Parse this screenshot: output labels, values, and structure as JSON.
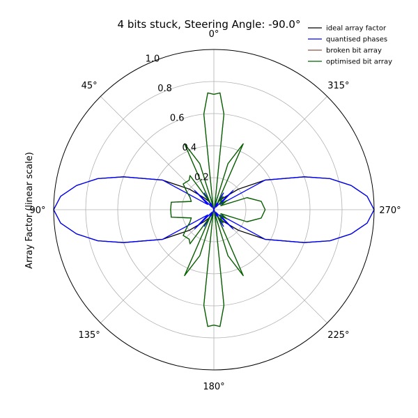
{
  "chart_data": {
    "type": "polar-line",
    "title": "4 bits stuck, Steering Angle: -90.0°",
    "ylabel": "Array Factor (linear scale)",
    "rlim": [
      0,
      1.0
    ],
    "r_ticks": [
      "0.2",
      "0.4",
      "0.6",
      "0.8",
      "1.0"
    ],
    "r_tick_values": [
      0.2,
      0.4,
      0.6,
      0.8,
      1.0
    ],
    "theta_ticks": [
      "0°",
      "45°",
      "90°",
      "135°",
      "180°",
      "225°",
      "270°",
      "315°"
    ],
    "theta_tick_values": [
      0,
      45,
      90,
      135,
      180,
      225,
      270,
      315
    ],
    "theta_zero": "top",
    "theta_direction": "counterclockwise",
    "grid": true,
    "legend_position": "top-right",
    "series": [
      {
        "name": "ideal array factor",
        "color": "#000000",
        "points": [
          [
            0,
            0
          ],
          [
            20,
            0.03
          ],
          [
            30,
            0.06
          ],
          [
            40,
            0.1
          ],
          [
            50,
            0.2
          ],
          [
            60,
            0.37
          ],
          [
            70,
            0.6
          ],
          [
            75,
            0.75
          ],
          [
            80,
            0.87
          ],
          [
            85,
            0.96
          ],
          [
            90,
            1.0
          ],
          [
            95,
            0.96
          ],
          [
            100,
            0.87
          ],
          [
            105,
            0.75
          ],
          [
            110,
            0.6
          ],
          [
            120,
            0.37
          ],
          [
            130,
            0.2
          ],
          [
            140,
            0.1
          ],
          [
            150,
            0.06
          ],
          [
            160,
            0.03
          ],
          [
            180,
            0
          ],
          [
            200,
            0.03
          ],
          [
            210,
            0.06
          ],
          [
            220,
            0.1
          ],
          [
            230,
            0.2
          ],
          [
            240,
            0.37
          ],
          [
            250,
            0.6
          ],
          [
            255,
            0.75
          ],
          [
            260,
            0.87
          ],
          [
            265,
            0.96
          ],
          [
            270,
            1.0
          ],
          [
            275,
            0.96
          ],
          [
            280,
            0.87
          ],
          [
            285,
            0.75
          ],
          [
            290,
            0.6
          ],
          [
            300,
            0.37
          ],
          [
            310,
            0.2
          ],
          [
            320,
            0.1
          ],
          [
            330,
            0.06
          ],
          [
            340,
            0.03
          ],
          [
            360,
            0
          ]
        ]
      },
      {
        "name": "quantised phases",
        "color": "#0000ff",
        "points": [
          [
            0,
            0
          ],
          [
            15,
            0.08
          ],
          [
            20,
            0.02
          ],
          [
            30,
            0.12
          ],
          [
            36,
            0.02
          ],
          [
            45,
            0.17
          ],
          [
            50,
            0.05
          ],
          [
            60,
            0.37
          ],
          [
            70,
            0.6
          ],
          [
            75,
            0.75
          ],
          [
            80,
            0.87
          ],
          [
            85,
            0.96
          ],
          [
            90,
            1.0
          ],
          [
            95,
            0.96
          ],
          [
            100,
            0.87
          ],
          [
            105,
            0.75
          ],
          [
            110,
            0.6
          ],
          [
            120,
            0.37
          ],
          [
            130,
            0.05
          ],
          [
            135,
            0.17
          ],
          [
            144,
            0.02
          ],
          [
            150,
            0.12
          ],
          [
            160,
            0.02
          ],
          [
            165,
            0.08
          ],
          [
            180,
            0
          ],
          [
            195,
            0.08
          ],
          [
            200,
            0.02
          ],
          [
            210,
            0.12
          ],
          [
            216,
            0.02
          ],
          [
            225,
            0.17
          ],
          [
            230,
            0.05
          ],
          [
            240,
            0.37
          ],
          [
            250,
            0.6
          ],
          [
            255,
            0.75
          ],
          [
            260,
            0.87
          ],
          [
            265,
            0.96
          ],
          [
            270,
            1.0
          ],
          [
            275,
            0.96
          ],
          [
            280,
            0.87
          ],
          [
            285,
            0.75
          ],
          [
            290,
            0.6
          ],
          [
            300,
            0.37
          ],
          [
            310,
            0.05
          ],
          [
            315,
            0.17
          ],
          [
            324,
            0.02
          ],
          [
            330,
            0.12
          ],
          [
            340,
            0.02
          ],
          [
            345,
            0.08
          ],
          [
            360,
            0
          ]
        ]
      },
      {
        "name": "broken bit array",
        "color": "#8c564b",
        "points": [
          [
            0,
            0.72
          ],
          [
            3,
            0.73
          ],
          [
            6,
            0.6
          ],
          [
            9,
            0.05
          ],
          [
            12,
            0.02
          ],
          [
            17,
            0.3
          ],
          [
            24,
            0.45
          ],
          [
            28,
            0.05
          ],
          [
            35,
            0.26
          ],
          [
            40,
            0.24
          ],
          [
            50,
            0.25
          ],
          [
            57,
            0.2
          ],
          [
            62,
            0.17
          ],
          [
            70,
            0.15
          ],
          [
            80,
            0.27
          ],
          [
            90,
            0.27
          ],
          [
            100,
            0.27
          ],
          [
            110,
            0.15
          ],
          [
            118,
            0.17
          ],
          [
            123,
            0.2
          ],
          [
            130,
            0.25
          ],
          [
            140,
            0.24
          ],
          [
            145,
            0.26
          ],
          [
            152,
            0.05
          ],
          [
            156,
            0.45
          ],
          [
            163,
            0.3
          ],
          [
            168,
            0.02
          ],
          [
            171,
            0.05
          ],
          [
            174,
            0.6
          ],
          [
            177,
            0.73
          ],
          [
            180,
            0.72
          ],
          [
            183,
            0.73
          ],
          [
            186,
            0.6
          ],
          [
            189,
            0.05
          ],
          [
            192,
            0.02
          ],
          [
            197,
            0.3
          ],
          [
            204,
            0.45
          ],
          [
            208,
            0.05
          ],
          [
            215,
            0.1
          ],
          [
            225,
            0.05
          ],
          [
            235,
            0.1
          ],
          [
            240,
            0.05
          ],
          [
            250,
            0.22
          ],
          [
            260,
            0.3
          ],
          [
            270,
            0.32
          ],
          [
            280,
            0.3
          ],
          [
            290,
            0.22
          ],
          [
            300,
            0.05
          ],
          [
            305,
            0.1
          ],
          [
            315,
            0.05
          ],
          [
            325,
            0.1
          ],
          [
            332,
            0.05
          ],
          [
            336,
            0.45
          ],
          [
            343,
            0.3
          ],
          [
            348,
            0.02
          ],
          [
            351,
            0.05
          ],
          [
            354,
            0.6
          ],
          [
            357,
            0.73
          ],
          [
            360,
            0.72
          ]
        ]
      },
      {
        "name": "optimised bit array",
        "color": "#006400",
        "points": [
          [
            0,
            0.72
          ],
          [
            3,
            0.73
          ],
          [
            6,
            0.6
          ],
          [
            9,
            0.05
          ],
          [
            12,
            0.02
          ],
          [
            17,
            0.3
          ],
          [
            24,
            0.45
          ],
          [
            28,
            0.05
          ],
          [
            35,
            0.26
          ],
          [
            40,
            0.24
          ],
          [
            50,
            0.25
          ],
          [
            57,
            0.2
          ],
          [
            62,
            0.17
          ],
          [
            70,
            0.15
          ],
          [
            80,
            0.27
          ],
          [
            90,
            0.27
          ],
          [
            100,
            0.27
          ],
          [
            110,
            0.15
          ],
          [
            118,
            0.17
          ],
          [
            123,
            0.2
          ],
          [
            130,
            0.25
          ],
          [
            140,
            0.24
          ],
          [
            145,
            0.26
          ],
          [
            152,
            0.05
          ],
          [
            156,
            0.45
          ],
          [
            163,
            0.3
          ],
          [
            168,
            0.02
          ],
          [
            171,
            0.05
          ],
          [
            174,
            0.6
          ],
          [
            177,
            0.73
          ],
          [
            180,
            0.72
          ],
          [
            183,
            0.73
          ],
          [
            186,
            0.6
          ],
          [
            189,
            0.05
          ],
          [
            192,
            0.02
          ],
          [
            197,
            0.3
          ],
          [
            204,
            0.45
          ],
          [
            208,
            0.05
          ],
          [
            215,
            0.1
          ],
          [
            225,
            0.05
          ],
          [
            235,
            0.1
          ],
          [
            240,
            0.05
          ],
          [
            250,
            0.22
          ],
          [
            260,
            0.3
          ],
          [
            270,
            0.32
          ],
          [
            280,
            0.3
          ],
          [
            290,
            0.22
          ],
          [
            300,
            0.05
          ],
          [
            305,
            0.1
          ],
          [
            315,
            0.05
          ],
          [
            325,
            0.1
          ],
          [
            332,
            0.05
          ],
          [
            336,
            0.45
          ],
          [
            343,
            0.3
          ],
          [
            348,
            0.02
          ],
          [
            351,
            0.05
          ],
          [
            354,
            0.6
          ],
          [
            357,
            0.73
          ],
          [
            360,
            0.72
          ]
        ]
      }
    ]
  }
}
